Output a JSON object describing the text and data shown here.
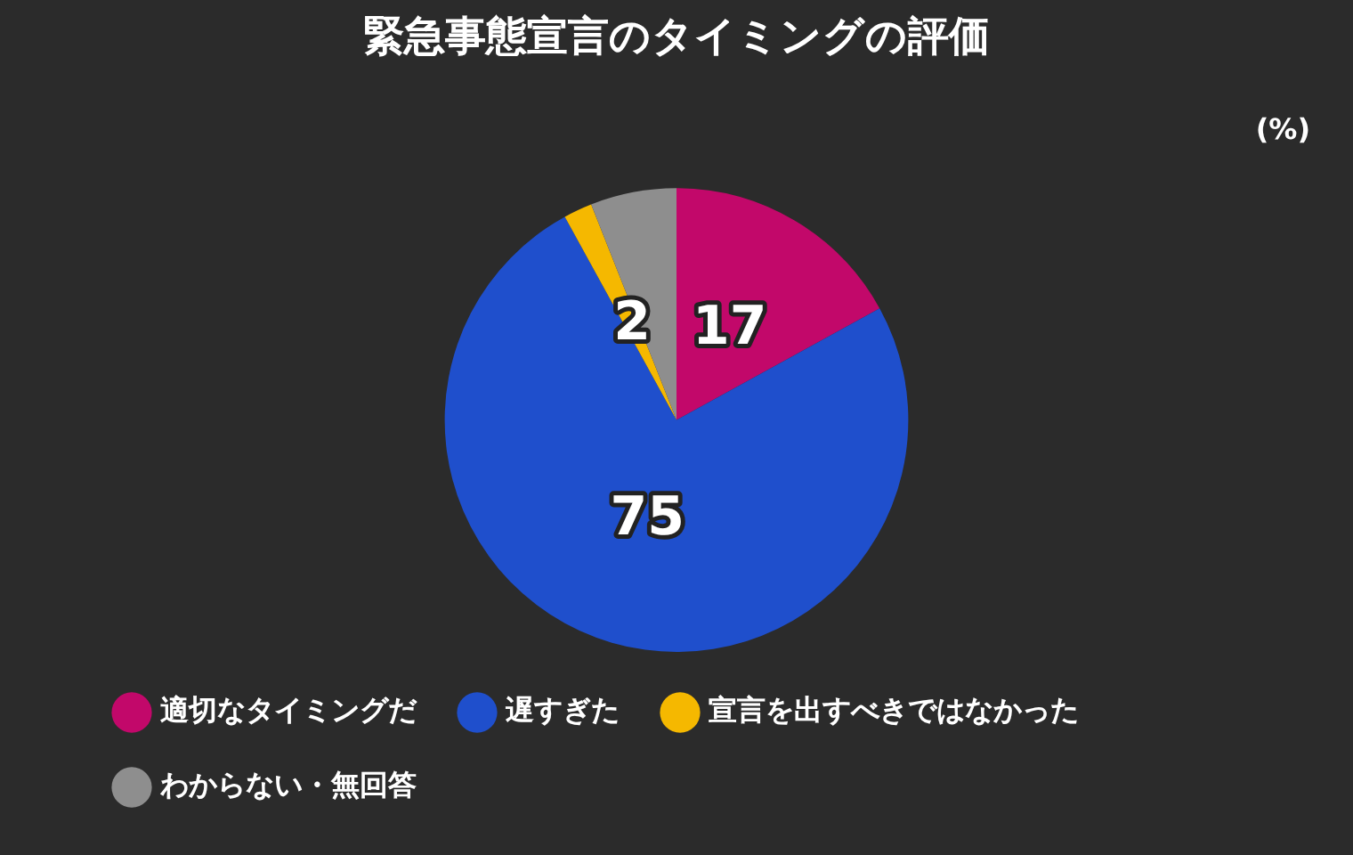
{
  "chart_data": {
    "type": "pie",
    "title": "緊急事態宣言のタイミングの評価",
    "categories": [
      "適切なタイミングだ",
      "遅すぎた",
      "宣言を出すべきではなかった",
      "わからない・無回答"
    ],
    "values": [
      17,
      75,
      2,
      6
    ],
    "colors": [
      "#c2086a",
      "#1f4fcc",
      "#f5b800",
      "#8e8e8e"
    ],
    "value_labels": [
      "17",
      "75",
      "2",
      null
    ],
    "annotations": [
      "(%)"
    ],
    "legend": "bottom"
  }
}
